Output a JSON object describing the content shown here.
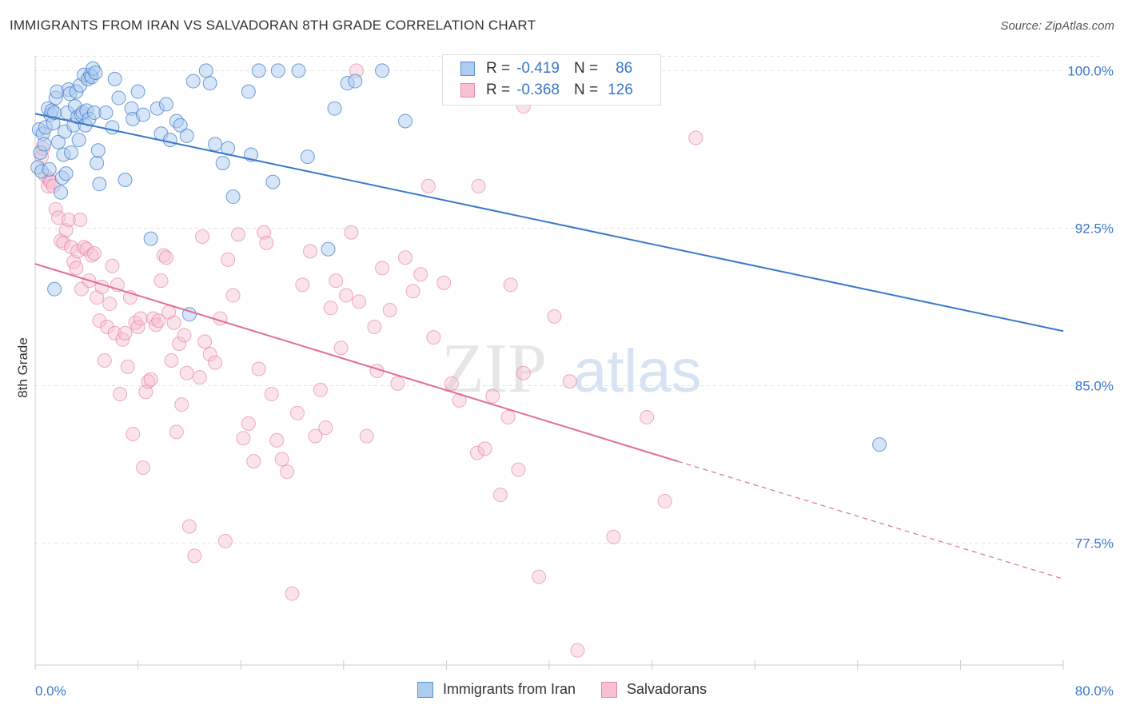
{
  "title": "IMMIGRANTS FROM IRAN VS SALVADORAN 8TH GRADE CORRELATION CHART",
  "source": "Source: ZipAtlas.com",
  "watermark": {
    "zip": "ZIP",
    "atlas": "atlas"
  },
  "legend": {
    "rows": [
      {
        "r_label": "R =",
        "r_value": "-0.419",
        "n_label": "N =",
        "n_value": "86",
        "color": "#aecbf0",
        "border": "#5b8fd6"
      },
      {
        "r_label": "R =",
        "r_value": "-0.368",
        "n_label": "N =",
        "n_value": "126",
        "color": "#f7c1d2",
        "border": "#e58aab"
      }
    ]
  },
  "bottom_legend": [
    {
      "label": "Immigrants from Iran",
      "color": "#aecbf0",
      "border": "#5b8fd6"
    },
    {
      "label": "Salvadorans",
      "color": "#f7c1d2",
      "border": "#e58aab"
    }
  ],
  "chart_data": {
    "type": "scatter",
    "title": "IMMIGRANTS FROM IRAN VS SALVADORAN 8TH GRADE CORRELATION CHART",
    "xlabel": "",
    "ylabel": "8th Grade",
    "xlim": [
      0,
      80
    ],
    "ylim": [
      71.7,
      100.7
    ],
    "x_tick_labels": [
      "0.0%",
      "80.0%"
    ],
    "y_ticks": [
      77.5,
      85.0,
      92.5,
      100.0
    ],
    "y_tick_labels": [
      "77.5%",
      "85.0%",
      "92.5%",
      "100.0%"
    ],
    "grid": true,
    "colors": {
      "iran": "#3a78c9",
      "iran_fill": "#aecbf0",
      "salv": "#e06e98",
      "salv_fill": "#f7c1d2",
      "tick": "#3a78c9"
    },
    "series": [
      {
        "name": "Immigrants from Iran",
        "trend": {
          "x0": 0,
          "y0": 97.95,
          "x1": 80,
          "y1": 87.6
        },
        "points": [
          [
            0.2,
            95.4
          ],
          [
            0.3,
            97.2
          ],
          [
            0.4,
            96.1
          ],
          [
            0.5,
            95.2
          ],
          [
            0.6,
            97.0
          ],
          [
            0.7,
            96.5
          ],
          [
            0.8,
            97.3
          ],
          [
            1.0,
            98.2
          ],
          [
            1.1,
            95.3
          ],
          [
            1.2,
            97.9
          ],
          [
            1.3,
            98.1
          ],
          [
            1.4,
            97.5
          ],
          [
            1.5,
            98.0
          ],
          [
            1.6,
            98.7
          ],
          [
            1.7,
            99.0
          ],
          [
            1.8,
            96.6
          ],
          [
            2.0,
            94.2
          ],
          [
            2.1,
            94.9
          ],
          [
            2.2,
            96.0
          ],
          [
            2.3,
            97.1
          ],
          [
            2.4,
            95.1
          ],
          [
            2.5,
            98.0
          ],
          [
            2.6,
            99.1
          ],
          [
            2.7,
            98.9
          ],
          [
            2.8,
            96.1
          ],
          [
            3.0,
            97.4
          ],
          [
            3.1,
            98.3
          ],
          [
            3.2,
            99.0
          ],
          [
            3.3,
            97.8
          ],
          [
            3.4,
            96.7
          ],
          [
            3.5,
            99.3
          ],
          [
            3.6,
            97.9
          ],
          [
            3.7,
            98.0
          ],
          [
            3.8,
            99.8
          ],
          [
            3.9,
            97.4
          ],
          [
            4.0,
            98.1
          ],
          [
            4.1,
            99.6
          ],
          [
            4.2,
            97.7
          ],
          [
            4.3,
            99.8
          ],
          [
            4.4,
            99.7
          ],
          [
            4.5,
            100.1
          ],
          [
            4.6,
            98.0
          ],
          [
            4.7,
            99.9
          ],
          [
            4.8,
            95.6
          ],
          [
            4.9,
            96.2
          ],
          [
            5.0,
            94.6
          ],
          [
            5.5,
            98.0
          ],
          [
            6.0,
            97.3
          ],
          [
            6.2,
            99.6
          ],
          [
            6.5,
            98.7
          ],
          [
            7.0,
            94.8
          ],
          [
            7.5,
            98.2
          ],
          [
            7.6,
            97.7
          ],
          [
            8.0,
            99.0
          ],
          [
            8.4,
            97.9
          ],
          [
            9.0,
            92.0
          ],
          [
            9.5,
            98.2
          ],
          [
            9.8,
            97.0
          ],
          [
            10.2,
            98.4
          ],
          [
            10.5,
            96.7
          ],
          [
            11.0,
            97.6
          ],
          [
            11.3,
            97.4
          ],
          [
            11.8,
            96.9
          ],
          [
            12.0,
            88.4
          ],
          [
            12.3,
            99.5
          ],
          [
            13.3,
            100.0
          ],
          [
            13.6,
            99.4
          ],
          [
            14.0,
            96.5
          ],
          [
            14.6,
            95.6
          ],
          [
            15.0,
            96.3
          ],
          [
            15.4,
            94.0
          ],
          [
            16.6,
            99.0
          ],
          [
            16.8,
            96.0
          ],
          [
            17.4,
            100.0
          ],
          [
            18.5,
            94.7
          ],
          [
            18.9,
            100.0
          ],
          [
            20.5,
            100.0
          ],
          [
            21.2,
            95.9
          ],
          [
            22.8,
            91.5
          ],
          [
            23.3,
            98.2
          ],
          [
            24.3,
            99.4
          ],
          [
            24.9,
            99.5
          ],
          [
            27.0,
            100.0
          ],
          [
            28.8,
            97.6
          ],
          [
            65.7,
            82.2
          ],
          [
            1.5,
            89.6
          ]
        ]
      },
      {
        "name": "Salvadorans",
        "trend": {
          "x0": 0,
          "y0": 90.8,
          "x1": 50,
          "y1": 81.4
        },
        "trend_dashed": {
          "x0": 50,
          "y0": 81.4,
          "x1": 80,
          "y1": 75.8
        },
        "points": [
          [
            0.5,
            95.9
          ],
          [
            0.6,
            96.3
          ],
          [
            0.8,
            95.0
          ],
          [
            1.0,
            94.5
          ],
          [
            1.1,
            94.8
          ],
          [
            1.2,
            94.7
          ],
          [
            1.4,
            94.5
          ],
          [
            1.6,
            93.4
          ],
          [
            1.8,
            93.0
          ],
          [
            2.0,
            91.9
          ],
          [
            2.2,
            91.8
          ],
          [
            2.4,
            92.4
          ],
          [
            2.6,
            92.9
          ],
          [
            2.8,
            91.6
          ],
          [
            3.0,
            90.9
          ],
          [
            3.2,
            90.6
          ],
          [
            3.3,
            91.4
          ],
          [
            3.5,
            92.9
          ],
          [
            3.6,
            89.6
          ],
          [
            3.8,
            91.6
          ],
          [
            4.0,
            91.5
          ],
          [
            4.2,
            90.0
          ],
          [
            4.4,
            91.2
          ],
          [
            4.6,
            91.3
          ],
          [
            4.8,
            89.2
          ],
          [
            5.0,
            88.1
          ],
          [
            5.2,
            89.7
          ],
          [
            5.4,
            86.2
          ],
          [
            5.6,
            87.8
          ],
          [
            5.8,
            88.9
          ],
          [
            6.0,
            90.7
          ],
          [
            6.2,
            87.5
          ],
          [
            6.4,
            89.8
          ],
          [
            6.6,
            84.6
          ],
          [
            6.8,
            87.2
          ],
          [
            7.0,
            87.5
          ],
          [
            7.2,
            85.9
          ],
          [
            7.4,
            89.2
          ],
          [
            7.6,
            82.7
          ],
          [
            7.8,
            88.0
          ],
          [
            8.0,
            87.8
          ],
          [
            8.2,
            88.2
          ],
          [
            8.4,
            81.1
          ],
          [
            8.6,
            84.7
          ],
          [
            8.8,
            85.2
          ],
          [
            9.0,
            85.3
          ],
          [
            9.2,
            88.2
          ],
          [
            9.4,
            87.9
          ],
          [
            9.6,
            88.1
          ],
          [
            9.8,
            90.0
          ],
          [
            10.0,
            91.2
          ],
          [
            10.2,
            91.1
          ],
          [
            10.4,
            88.5
          ],
          [
            10.6,
            86.2
          ],
          [
            10.8,
            88.0
          ],
          [
            11.0,
            82.8
          ],
          [
            11.2,
            87.0
          ],
          [
            11.4,
            84.1
          ],
          [
            11.6,
            87.4
          ],
          [
            11.8,
            85.6
          ],
          [
            12.0,
            78.3
          ],
          [
            12.4,
            76.9
          ],
          [
            12.8,
            85.4
          ],
          [
            13.0,
            92.1
          ],
          [
            13.2,
            87.1
          ],
          [
            13.6,
            86.5
          ],
          [
            14.0,
            86.1
          ],
          [
            14.4,
            88.2
          ],
          [
            14.8,
            77.6
          ],
          [
            15.0,
            91.0
          ],
          [
            15.4,
            89.3
          ],
          [
            15.8,
            92.2
          ],
          [
            16.2,
            82.5
          ],
          [
            16.6,
            83.2
          ],
          [
            17.0,
            81.4
          ],
          [
            17.4,
            85.8
          ],
          [
            17.8,
            92.3
          ],
          [
            18.0,
            91.8
          ],
          [
            18.4,
            84.6
          ],
          [
            18.8,
            82.4
          ],
          [
            19.2,
            81.5
          ],
          [
            19.6,
            80.9
          ],
          [
            20.0,
            75.1
          ],
          [
            20.4,
            83.7
          ],
          [
            20.8,
            89.8
          ],
          [
            21.4,
            91.4
          ],
          [
            21.8,
            82.6
          ],
          [
            22.2,
            84.8
          ],
          [
            22.6,
            83.0
          ],
          [
            23.0,
            88.7
          ],
          [
            23.4,
            90.0
          ],
          [
            23.8,
            86.8
          ],
          [
            24.2,
            89.3
          ],
          [
            24.6,
            92.3
          ],
          [
            25.2,
            89.0
          ],
          [
            25.8,
            82.6
          ],
          [
            26.4,
            87.8
          ],
          [
            26.6,
            85.7
          ],
          [
            27.0,
            90.6
          ],
          [
            27.6,
            88.6
          ],
          [
            28.2,
            85.1
          ],
          [
            28.8,
            91.1
          ],
          [
            29.4,
            89.5
          ],
          [
            30.0,
            90.3
          ],
          [
            30.6,
            94.5
          ],
          [
            31.0,
            87.3
          ],
          [
            31.8,
            89.9
          ],
          [
            32.4,
            85.1
          ],
          [
            33.0,
            84.3
          ],
          [
            34.4,
            81.8
          ],
          [
            35.0,
            82.0
          ],
          [
            35.6,
            84.5
          ],
          [
            36.2,
            79.8
          ],
          [
            36.8,
            83.5
          ],
          [
            37.0,
            89.8
          ],
          [
            37.6,
            81.0
          ],
          [
            38.0,
            85.6
          ],
          [
            39.2,
            75.9
          ],
          [
            40.4,
            88.3
          ],
          [
            41.6,
            85.2
          ],
          [
            42.2,
            72.4
          ],
          [
            45.0,
            77.8
          ],
          [
            47.6,
            83.5
          ],
          [
            49.0,
            79.5
          ],
          [
            51.4,
            96.8
          ],
          [
            25.0,
            100.0
          ],
          [
            38.0,
            98.3
          ],
          [
            34.5,
            94.5
          ]
        ]
      }
    ]
  }
}
